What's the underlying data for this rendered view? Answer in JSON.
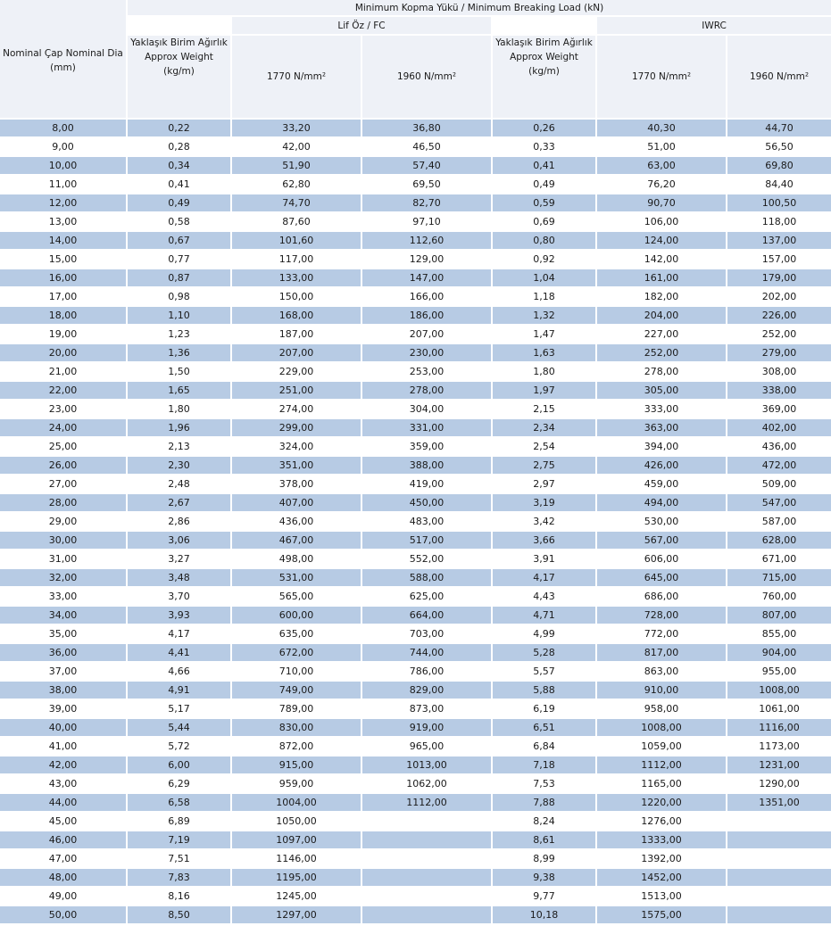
{
  "header": {
    "nominal_dia": "Nominal Çap Nominal Dia\n(mm)",
    "min_breaking_load": "Minimum Kopma Yükü / Minimum Breaking Load (kN)",
    "fc_group": "Lif Öz / FC",
    "iwrc_group": "IWRC",
    "approx_weight": "Yaklaşık Birim Ağırlık\nApprox Weight\n(kg/m)",
    "grade_1770": "1770 N/mm²",
    "grade_1960": "1960 N/mm²"
  },
  "rows": [
    [
      "8,00",
      "0,22",
      "33,20",
      "36,80",
      "0,26",
      "40,30",
      "44,70"
    ],
    [
      "9,00",
      "0,28",
      "42,00",
      "46,50",
      "0,33",
      "51,00",
      "56,50"
    ],
    [
      "10,00",
      "0,34",
      "51,90",
      "57,40",
      "0,41",
      "63,00",
      "69,80"
    ],
    [
      "11,00",
      "0,41",
      "62,80",
      "69,50",
      "0,49",
      "76,20",
      "84,40"
    ],
    [
      "12,00",
      "0,49",
      "74,70",
      "82,70",
      "0,59",
      "90,70",
      "100,50"
    ],
    [
      "13,00",
      "0,58",
      "87,60",
      "97,10",
      "0,69",
      "106,00",
      "118,00"
    ],
    [
      "14,00",
      "0,67",
      "101,60",
      "112,60",
      "0,80",
      "124,00",
      "137,00"
    ],
    [
      "15,00",
      "0,77",
      "117,00",
      "129,00",
      "0,92",
      "142,00",
      "157,00"
    ],
    [
      "16,00",
      "0,87",
      "133,00",
      "147,00",
      "1,04",
      "161,00",
      "179,00"
    ],
    [
      "17,00",
      "0,98",
      "150,00",
      "166,00",
      "1,18",
      "182,00",
      "202,00"
    ],
    [
      "18,00",
      "1,10",
      "168,00",
      "186,00",
      "1,32",
      "204,00",
      "226,00"
    ],
    [
      "19,00",
      "1,23",
      "187,00",
      "207,00",
      "1,47",
      "227,00",
      "252,00"
    ],
    [
      "20,00",
      "1,36",
      "207,00",
      "230,00",
      "1,63",
      "252,00",
      "279,00"
    ],
    [
      "21,00",
      "1,50",
      "229,00",
      "253,00",
      "1,80",
      "278,00",
      "308,00"
    ],
    [
      "22,00",
      "1,65",
      "251,00",
      "278,00",
      "1,97",
      "305,00",
      "338,00"
    ],
    [
      "23,00",
      "1,80",
      "274,00",
      "304,00",
      "2,15",
      "333,00",
      "369,00"
    ],
    [
      "24,00",
      "1,96",
      "299,00",
      "331,00",
      "2,34",
      "363,00",
      "402,00"
    ],
    [
      "25,00",
      "2,13",
      "324,00",
      "359,00",
      "2,54",
      "394,00",
      "436,00"
    ],
    [
      "26,00",
      "2,30",
      "351,00",
      "388,00",
      "2,75",
      "426,00",
      "472,00"
    ],
    [
      "27,00",
      "2,48",
      "378,00",
      "419,00",
      "2,97",
      "459,00",
      "509,00"
    ],
    [
      "28,00",
      "2,67",
      "407,00",
      "450,00",
      "3,19",
      "494,00",
      "547,00"
    ],
    [
      "29,00",
      "2,86",
      "436,00",
      "483,00",
      "3,42",
      "530,00",
      "587,00"
    ],
    [
      "30,00",
      "3,06",
      "467,00",
      "517,00",
      "3,66",
      "567,00",
      "628,00"
    ],
    [
      "31,00",
      "3,27",
      "498,00",
      "552,00",
      "3,91",
      "606,00",
      "671,00"
    ],
    [
      "32,00",
      "3,48",
      "531,00",
      "588,00",
      "4,17",
      "645,00",
      "715,00"
    ],
    [
      "33,00",
      "3,70",
      "565,00",
      "625,00",
      "4,43",
      "686,00",
      "760,00"
    ],
    [
      "34,00",
      "3,93",
      "600,00",
      "664,00",
      "4,71",
      "728,00",
      "807,00"
    ],
    [
      "35,00",
      "4,17",
      "635,00",
      "703,00",
      "4,99",
      "772,00",
      "855,00"
    ],
    [
      "36,00",
      "4,41",
      "672,00",
      "744,00",
      "5,28",
      "817,00",
      "904,00"
    ],
    [
      "37,00",
      "4,66",
      "710,00",
      "786,00",
      "5,57",
      "863,00",
      "955,00"
    ],
    [
      "38,00",
      "4,91",
      "749,00",
      "829,00",
      "5,88",
      "910,00",
      "1008,00"
    ],
    [
      "39,00",
      "5,17",
      "789,00",
      "873,00",
      "6,19",
      "958,00",
      "1061,00"
    ],
    [
      "40,00",
      "5,44",
      "830,00",
      "919,00",
      "6,51",
      "1008,00",
      "1116,00"
    ],
    [
      "41,00",
      "5,72",
      "872,00",
      "965,00",
      "6,84",
      "1059,00",
      "1173,00"
    ],
    [
      "42,00",
      "6,00",
      "915,00",
      "1013,00",
      "7,18",
      "1112,00",
      "1231,00"
    ],
    [
      "43,00",
      "6,29",
      "959,00",
      "1062,00",
      "7,53",
      "1165,00",
      "1290,00"
    ],
    [
      "44,00",
      "6,58",
      "1004,00",
      "1112,00",
      "7,88",
      "1220,00",
      "1351,00"
    ],
    [
      "45,00",
      "6,89",
      "1050,00",
      "",
      "8,24",
      "1276,00",
      ""
    ],
    [
      "46,00",
      "7,19",
      "1097,00",
      "",
      "8,61",
      "1333,00",
      ""
    ],
    [
      "47,00",
      "7,51",
      "1146,00",
      "",
      "8,99",
      "1392,00",
      ""
    ],
    [
      "48,00",
      "7,83",
      "1195,00",
      "",
      "9,38",
      "1452,00",
      ""
    ],
    [
      "49,00",
      "8,16",
      "1245,00",
      "",
      "9,77",
      "1513,00",
      ""
    ],
    [
      "50,00",
      "8,50",
      "1297,00",
      "",
      "10,18",
      "1575,00",
      ""
    ]
  ]
}
